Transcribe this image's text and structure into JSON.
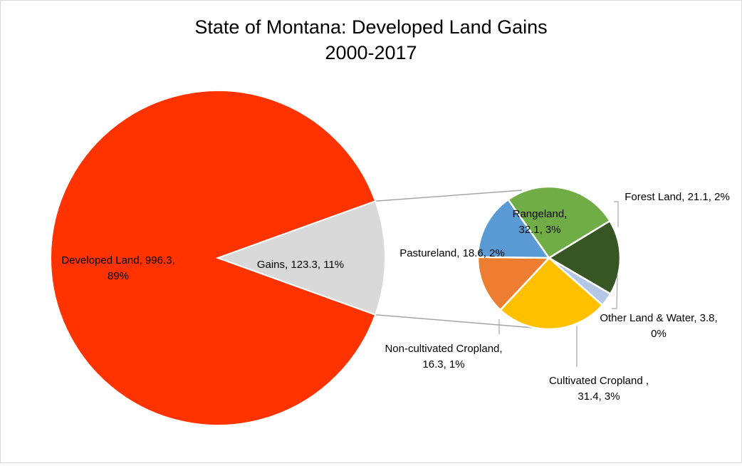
{
  "chart_data": {
    "type": "pie",
    "subtype": "pie-of-pie",
    "title_line1": "State of Montana: Developed Land Gains",
    "title_line2": "2000-2017",
    "main_slices": [
      {
        "name": "Developed Land",
        "value": 996.3,
        "pct": "89%",
        "color": "#ff3300",
        "label_lines": [
          "Developed Land, 996.3,",
          "89%"
        ]
      },
      {
        "name": "Gains",
        "value": 123.3,
        "pct": "11%",
        "color": "#d9d9d9",
        "label_lines": [
          "Gains, 123.3, 11%"
        ]
      }
    ],
    "secondary_slices": [
      {
        "name": "Rangeland",
        "value": 32.1,
        "pct": "3%",
        "color": "#70ad47",
        "label_lines": [
          "Rangeland,",
          "32.1, 3%"
        ]
      },
      {
        "name": "Forest Land",
        "value": 21.1,
        "pct": "2%",
        "color": "#375623",
        "label_lines": [
          "Forest Land, 21.1, 2%"
        ]
      },
      {
        "name": "Other Land & Water",
        "value": 3.8,
        "pct": "0%",
        "color": "#b4c7e7",
        "label_lines": [
          "Other Land & Water, 3.8,",
          "0%"
        ]
      },
      {
        "name": "Cultivated Cropland",
        "value": 31.4,
        "pct": "3%",
        "color": "#ffc000",
        "label_lines": [
          "Cultivated Cropland ,",
          "31.4, 3%"
        ]
      },
      {
        "name": "Non-cultivated Cropland",
        "value": 16.3,
        "pct": "1%",
        "color": "#ed7d31",
        "label_lines": [
          "Non-cultivated Cropland,",
          "16.3, 1%"
        ]
      },
      {
        "name": "Pastureland",
        "value": 18.6,
        "pct": "2%",
        "color": "#5b9bd5",
        "label_lines": [
          "Pastureland, 18.6, 2%"
        ]
      }
    ],
    "legend": "none"
  }
}
